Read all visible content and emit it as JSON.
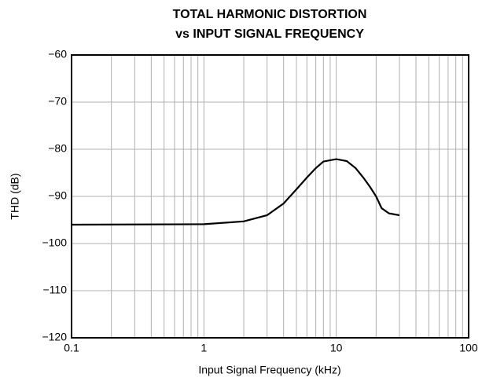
{
  "chart_data": {
    "type": "line",
    "title": "TOTAL HARMONIC DISTORTION",
    "subtitle": "vs INPUT SIGNAL FREQUENCY",
    "x_label": "Input Signal Frequency (kHz)",
    "y_label": "THD (dB)",
    "x_scale": "log",
    "grid": true,
    "xlim": [
      0.1,
      100
    ],
    "xticks": [
      0.1,
      1,
      10,
      100
    ],
    "ylim": [
      -120,
      -60
    ],
    "yticks": [
      {
        "value": -120,
        "label": "−120"
      },
      {
        "value": -110,
        "label": "−110"
      },
      {
        "value": -100,
        "label": "−100"
      },
      {
        "value": -90,
        "label": "−90"
      },
      {
        "value": -80,
        "label": "−80"
      },
      {
        "value": -70,
        "label": "−70"
      },
      {
        "value": -60,
        "label": "−60"
      }
    ],
    "x": [
      0.1,
      1,
      2,
      3,
      4,
      5,
      6,
      7,
      8,
      10,
      12,
      14,
      16,
      18,
      20,
      22,
      25,
      30
    ],
    "series": [
      {
        "name": "THD",
        "color": "#000000",
        "values": [
          -96,
          -95.9,
          -95.3,
          -94,
          -91.5,
          -88.5,
          -86,
          -84,
          -82.6,
          -82.1,
          -82.5,
          -84,
          -86,
          -88,
          -90,
          -92.5,
          -93.6,
          -94
        ]
      }
    ]
  }
}
